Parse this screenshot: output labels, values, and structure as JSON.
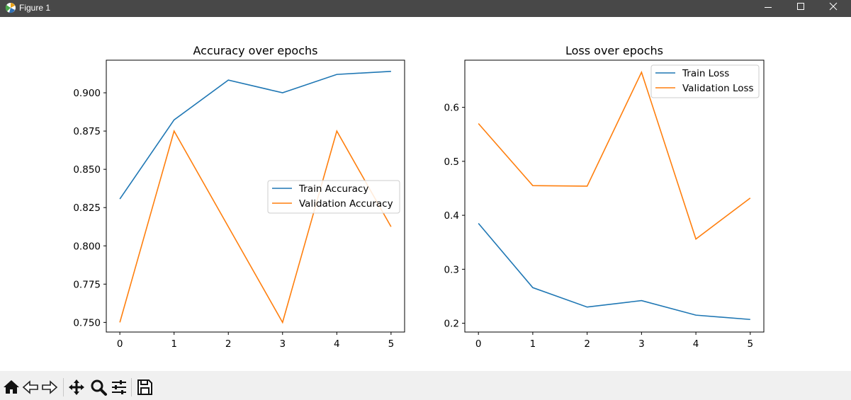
{
  "window": {
    "title": "Figure 1"
  },
  "toolbar": {
    "buttons": [
      "home-icon",
      "back-icon",
      "forward-icon",
      "pan-icon",
      "zoom-icon",
      "configure-icon",
      "save-icon"
    ]
  },
  "chart_data": [
    {
      "type": "line",
      "title": "Accuracy over epochs",
      "xlabel": "",
      "ylabel": "",
      "x": [
        0,
        1,
        2,
        3,
        4,
        5
      ],
      "xticks": [
        "0",
        "1",
        "2",
        "3",
        "4",
        "5"
      ],
      "yticks": [
        "0.750",
        "0.775",
        "0.800",
        "0.825",
        "0.850",
        "0.875",
        "0.900"
      ],
      "xlim": [
        -0.25,
        5.25
      ],
      "ylim": [
        0.7437,
        0.9213
      ],
      "legend_position": "center-right",
      "series": [
        {
          "name": "Train Accuracy",
          "color": "#1f77b4",
          "values": [
            0.8306,
            0.8823,
            0.9083,
            0.9,
            0.912,
            0.914
          ]
        },
        {
          "name": "Validation Accuracy",
          "color": "#ff7f0e",
          "values": [
            0.75,
            0.875,
            0.8125,
            0.75,
            0.875,
            0.8125
          ]
        }
      ]
    },
    {
      "type": "line",
      "title": "Loss over epochs",
      "xlabel": "",
      "ylabel": "",
      "x": [
        0,
        1,
        2,
        3,
        4,
        5
      ],
      "xticks": [
        "0",
        "1",
        "2",
        "3",
        "4",
        "5"
      ],
      "yticks": [
        "0.2",
        "0.3",
        "0.4",
        "0.5",
        "0.6"
      ],
      "xlim": [
        -0.25,
        5.25
      ],
      "ylim": [
        0.1837,
        0.6874
      ],
      "legend_position": "upper-right",
      "series": [
        {
          "name": "Train Loss",
          "color": "#1f77b4",
          "values": [
            0.385,
            0.266,
            0.23,
            0.242,
            0.215,
            0.207
          ]
        },
        {
          "name": "Validation Loss",
          "color": "#ff7f0e",
          "values": [
            0.57,
            0.455,
            0.454,
            0.665,
            0.356,
            0.432
          ]
        }
      ]
    }
  ]
}
